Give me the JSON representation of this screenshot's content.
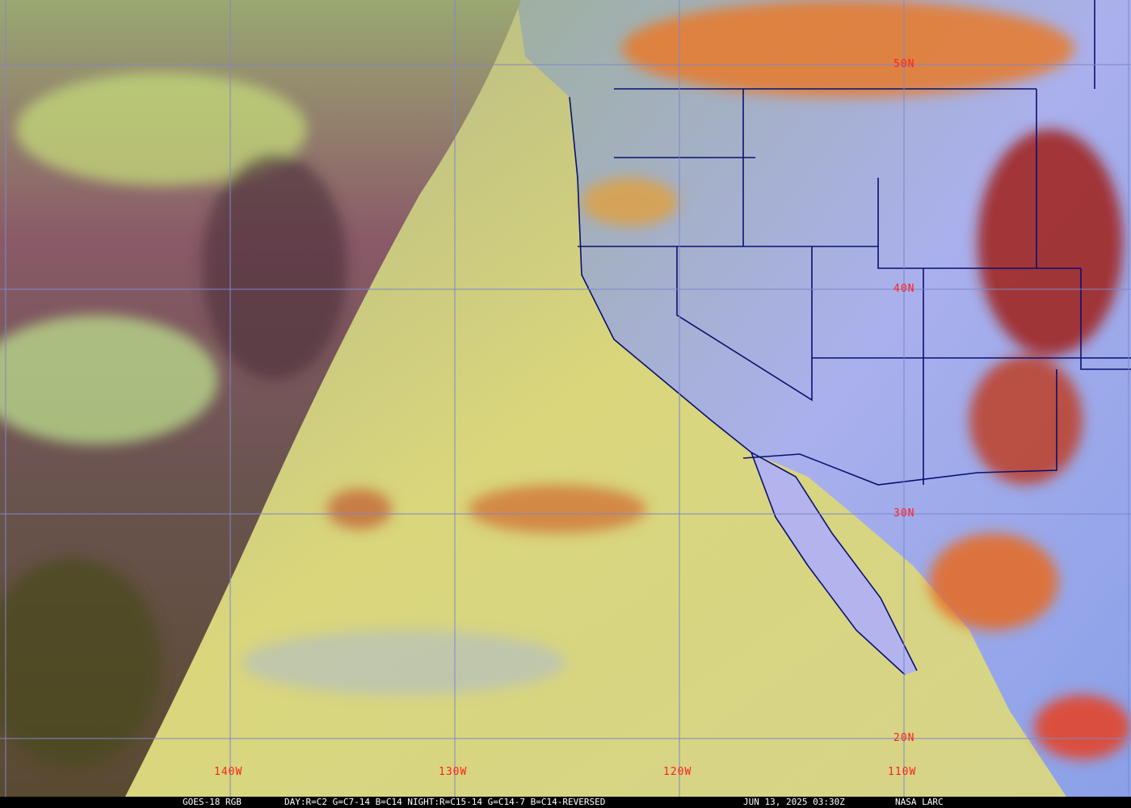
{
  "caption": {
    "satellite": "GOES-18 RGB",
    "recipe": "DAY:R=C2 G=C7-14 B=C14 NIGHT:R=C15-14 G=C14-7 B=C14-REVERSED",
    "datetime": "JUN 13, 2025 03:30Z",
    "credit": "NASA LARC"
  },
  "grid": {
    "latitudes": [
      "50N",
      "40N",
      "30N",
      "20N"
    ],
    "longitudes": [
      "140W",
      "130W",
      "120W",
      "110W"
    ],
    "label_color": "#ff2020",
    "line_color": "#7f86c8"
  },
  "colors": {
    "ocean": "#d8d47a",
    "night_side": "#7a4a5a",
    "land": "#a8b0e8",
    "cloud_high": "#e05a1a",
    "boundaries": "#0a1070"
  }
}
